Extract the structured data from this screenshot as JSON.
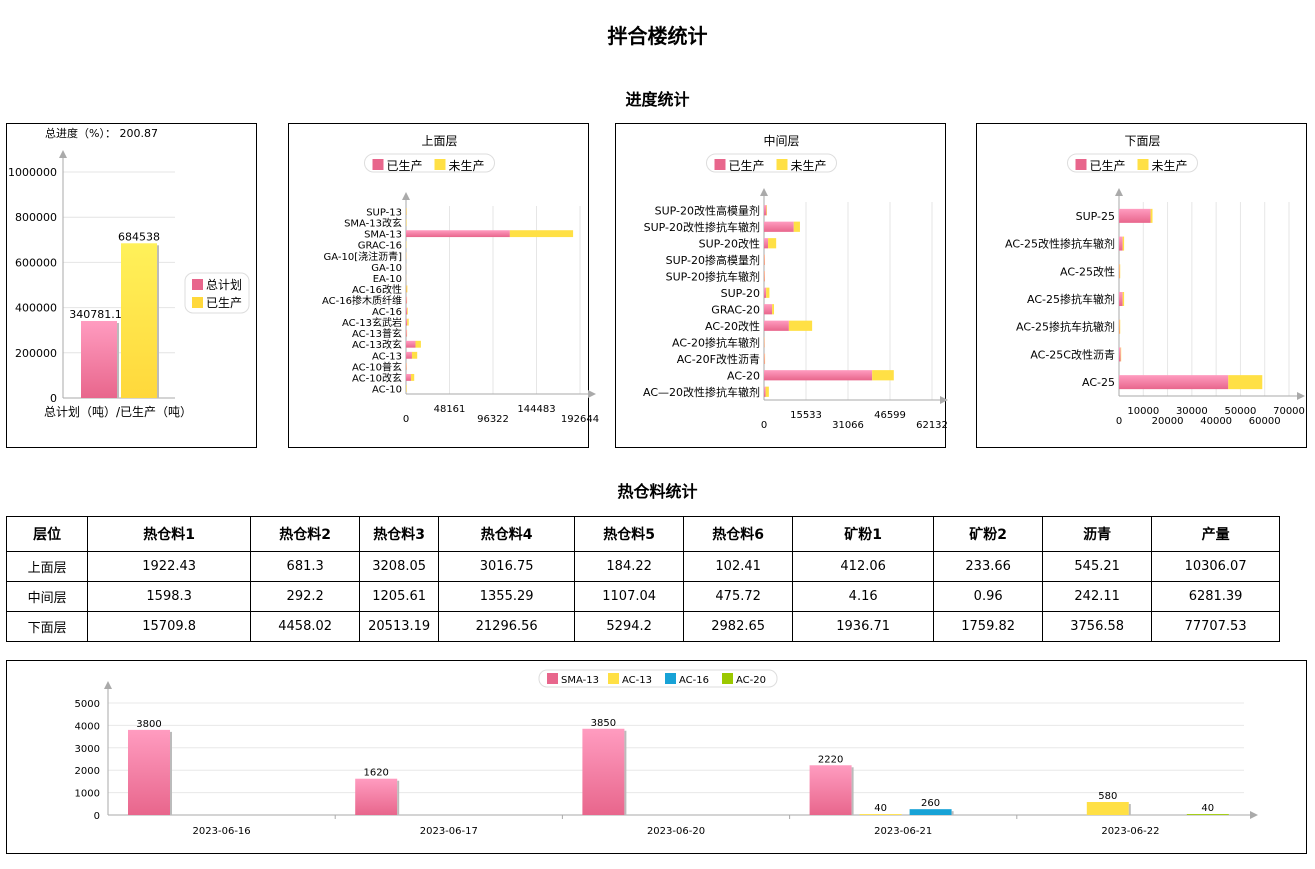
{
  "page": {
    "title": "拌合楼统计",
    "progress_section": "进度统计",
    "hot_bin_section": "热仓料统计"
  },
  "colors": {
    "planned": "#E8668C",
    "produced": "#FFD83B",
    "unproduced": "#FFE045",
    "ac13": "#FFE045",
    "ac16": "#17A2D6",
    "ac20": "#9BC800"
  },
  "chart_data": [
    {
      "type": "bar",
      "header": "总进度（%）： 200.87",
      "categories": [
        "总计划",
        "已生产"
      ],
      "values": [
        340781.15,
        684538
      ],
      "value_labels": [
        "340781.15",
        "684538"
      ],
      "xlabel": "总计划（吨）/已生产（吨）",
      "ylim": [
        0,
        1000000
      ],
      "yticks": [
        0,
        200000,
        400000,
        600000,
        800000,
        1000000
      ],
      "legend": [
        "总计划",
        "已生产"
      ],
      "legend_position": "right"
    },
    {
      "type": "bar",
      "orientation": "horizontal",
      "stacked": true,
      "title": "上面层",
      "categories": [
        "SUP-13",
        "SMA-13改玄",
        "SMA-13",
        "GRAC-16",
        "GA-10[浇注沥青]",
        "GA-10",
        "EA-10",
        "AC-16改性",
        "AC-16掺木质纤维",
        "AC-16",
        "AC-13玄武岩",
        "AC-13普玄",
        "AC-13改玄",
        "AC-13",
        "AC-10普玄",
        "AC-10改玄",
        "AC-10"
      ],
      "series": [
        {
          "name": "已生产",
          "values": [
            300,
            200,
            115000,
            200,
            300,
            150,
            150,
            400,
            900,
            1200,
            1300,
            900,
            10500,
            6600,
            500,
            5500,
            200
          ]
        },
        {
          "name": "未生产",
          "values": [
            500,
            500,
            70000,
            400,
            300,
            150,
            150,
            1100,
            300,
            800,
            1700,
            300,
            6000,
            5800,
            300,
            3600,
            600
          ]
        }
      ],
      "xticks": [
        0,
        48161,
        96322,
        144483,
        192644
      ],
      "xlim": [
        0,
        192644
      ],
      "legend_position": "top"
    },
    {
      "type": "bar",
      "orientation": "horizontal",
      "stacked": true,
      "title": "中间层",
      "categories": [
        "SUP-20改性高模量剂",
        "SUP-20改性掺抗车辙剂",
        "SUP-20改性",
        "SUP-20掺高模量剂",
        "SUP-20掺抗车辙剂",
        "SUP-20",
        "GRAC-20",
        "AC-20改性",
        "AC-20掺抗车辙剂",
        "AC-20F改性沥青",
        "AC-20",
        "AC—20改性掺抗车辙剂"
      ],
      "series": [
        {
          "name": "已生产",
          "values": [
            900,
            11000,
            1500,
            250,
            250,
            800,
            3000,
            9200,
            150,
            250,
            40000,
            600
          ]
        },
        {
          "name": "未生产",
          "values": [
            200,
            2300,
            3000,
            120,
            120,
            1200,
            700,
            8600,
            100,
            150,
            8000,
            1200
          ]
        }
      ],
      "xticks": [
        0,
        15533,
        31066,
        46599,
        62132
      ],
      "xlim": [
        0,
        62132
      ],
      "legend_position": "top"
    },
    {
      "type": "bar",
      "orientation": "horizontal",
      "stacked": true,
      "title": "下面层",
      "categories": [
        "SUP-25",
        "AC-25改性掺抗车辙剂",
        "AC-25改性",
        "AC-25掺抗车辙剂",
        "AC-25掺抗车抗辙剂",
        "AC-25C改性沥青",
        "AC-25"
      ],
      "series": [
        {
          "name": "已生产",
          "values": [
            13000,
            1500,
            200,
            1500,
            200,
            700,
            45000
          ]
        },
        {
          "name": "未生产",
          "values": [
            800,
            600,
            300,
            600,
            300,
            200,
            14000
          ]
        }
      ],
      "xticks": [
        0,
        10000,
        20000,
        30000,
        40000,
        50000,
        60000,
        70000
      ],
      "xlim": [
        0,
        70000
      ],
      "legend_position": "top"
    },
    {
      "type": "bar",
      "categories": [
        "2023-06-16",
        "2023-06-17",
        "2023-06-20",
        "2023-06-21",
        "2023-06-22"
      ],
      "series": [
        {
          "name": "SMA-13",
          "values": [
            3800,
            1620,
            3850,
            2220,
            0
          ]
        },
        {
          "name": "AC-13",
          "values": [
            0,
            0,
            0,
            40,
            580
          ]
        },
        {
          "name": "AC-16",
          "values": [
            0,
            0,
            0,
            260,
            0
          ]
        },
        {
          "name": "AC-20",
          "values": [
            0,
            0,
            0,
            0,
            40
          ]
        }
      ],
      "ylim": [
        0,
        5000
      ],
      "yticks": [
        0,
        1000,
        2000,
        3000,
        4000,
        5000
      ],
      "legend_position": "top"
    }
  ],
  "hot_bin_table": {
    "headers": [
      "层位",
      "热仓料1",
      "热仓料2",
      "热仓料3",
      "热仓料4",
      "热仓料5",
      "热仓料6",
      "矿粉1",
      "矿粉2",
      "沥青",
      "产量"
    ],
    "rows": [
      [
        "上面层",
        "1922.43",
        "681.3",
        "3208.05",
        "3016.75",
        "184.22",
        "102.41",
        "412.06",
        "233.66",
        "545.21",
        "10306.07"
      ],
      [
        "中间层",
        "1598.3",
        "292.2",
        "1205.61",
        "1355.29",
        "1107.04",
        "475.72",
        "4.16",
        "0.96",
        "242.11",
        "6281.39"
      ],
      [
        "下面层",
        "15709.8",
        "4458.02",
        "20513.19",
        "21296.56",
        "5294.2",
        "2982.65",
        "1936.71",
        "1759.82",
        "3756.58",
        "77707.53"
      ]
    ]
  }
}
